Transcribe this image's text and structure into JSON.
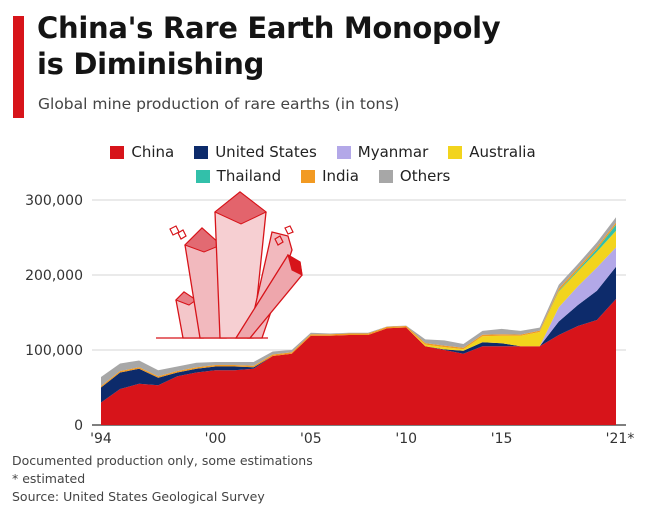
{
  "header": {
    "title_line1": "China's Rare Earth Monopoly",
    "title_line2": "is Diminishing",
    "subtitle": "Global mine production of rare earths (in tons)"
  },
  "footer": {
    "note1": "Documented production only, some estimations",
    "note2": "* estimated",
    "source": "Source: United States Geological Survey"
  },
  "chart_data": {
    "type": "area",
    "stacked": true,
    "x": [
      1994,
      1995,
      1996,
      1997,
      1998,
      1999,
      2000,
      2001,
      2002,
      2003,
      2004,
      2005,
      2006,
      2007,
      2008,
      2009,
      2010,
      2011,
      2012,
      2013,
      2014,
      2015,
      2016,
      2017,
      2018,
      2019,
      2020,
      2021
    ],
    "series": [
      {
        "name": "China",
        "color": "#d7141a",
        "values": [
          30000,
          48000,
          55000,
          53000,
          65000,
          70000,
          73000,
          73000,
          75000,
          92000,
          95000,
          119000,
          119000,
          120000,
          120000,
          129000,
          130000,
          105000,
          100000,
          95000,
          105000,
          105000,
          105000,
          105000,
          120000,
          132000,
          140000,
          168000
        ]
      },
      {
        "name": "United States",
        "color": "#0d2b6b",
        "values": [
          20000,
          22000,
          20000,
          10000,
          5000,
          5000,
          5000,
          5000,
          2000,
          0,
          0,
          0,
          0,
          0,
          0,
          0,
          0,
          0,
          800,
          4000,
          5400,
          4100,
          0,
          0,
          18000,
          28000,
          39000,
          43000
        ]
      },
      {
        "name": "Myanmar",
        "color": "#b3a8e8",
        "values": [
          0,
          0,
          0,
          0,
          0,
          0,
          0,
          0,
          0,
          0,
          0,
          0,
          0,
          0,
          0,
          0,
          0,
          0,
          0,
          0,
          0,
          0,
          0,
          0,
          19000,
          25000,
          31000,
          26000
        ]
      },
      {
        "name": "Australia",
        "color": "#f2d41d",
        "values": [
          0,
          0,
          0,
          0,
          0,
          0,
          0,
          0,
          0,
          0,
          0,
          0,
          0,
          0,
          0,
          0,
          0,
          2200,
          3000,
          2000,
          8000,
          10000,
          14000,
          19000,
          21000,
          20000,
          21000,
          22000
        ]
      },
      {
        "name": "Thailand",
        "color": "#32c0aa",
        "values": [
          0,
          0,
          0,
          0,
          0,
          0,
          0,
          0,
          0,
          0,
          0,
          0,
          0,
          0,
          0,
          0,
          0,
          0,
          0,
          0,
          0,
          0,
          0,
          0,
          1000,
          1800,
          3600,
          8000
        ]
      },
      {
        "name": "India",
        "color": "#f29a22",
        "values": [
          2000,
          2000,
          2000,
          2000,
          2000,
          2000,
          2000,
          2000,
          2000,
          2000,
          2000,
          2000,
          2000,
          2000,
          2000,
          2000,
          2000,
          2000,
          2000,
          2000,
          2000,
          2000,
          1500,
          1800,
          2900,
          2900,
          2900,
          2900
        ]
      },
      {
        "name": "Others",
        "color": "#a7a7a7",
        "values": [
          12000,
          10000,
          9000,
          8000,
          6000,
          6000,
          4000,
          4000,
          5000,
          4000,
          3000,
          2000,
          1000,
          1000,
          1000,
          500,
          500,
          5000,
          7000,
          5000,
          5000,
          7000,
          5000,
          4000,
          5000,
          5000,
          6000,
          7000
        ]
      }
    ],
    "ylim": [
      0,
      300000
    ],
    "yticks": [
      0,
      100000,
      200000,
      300000
    ],
    "ytick_labels": [
      "0",
      "100,000",
      "200,000",
      "300,000"
    ],
    "xtick_labels": [
      {
        "x": 1994,
        "label": "'94"
      },
      {
        "x": 2000,
        "label": "'00"
      },
      {
        "x": 2005,
        "label": "'05"
      },
      {
        "x": 2010,
        "label": "'10"
      },
      {
        "x": 2015,
        "label": "'15"
      },
      {
        "x": 2021,
        "label": "'21*"
      }
    ],
    "grid": true,
    "legend_position": "top-center"
  }
}
